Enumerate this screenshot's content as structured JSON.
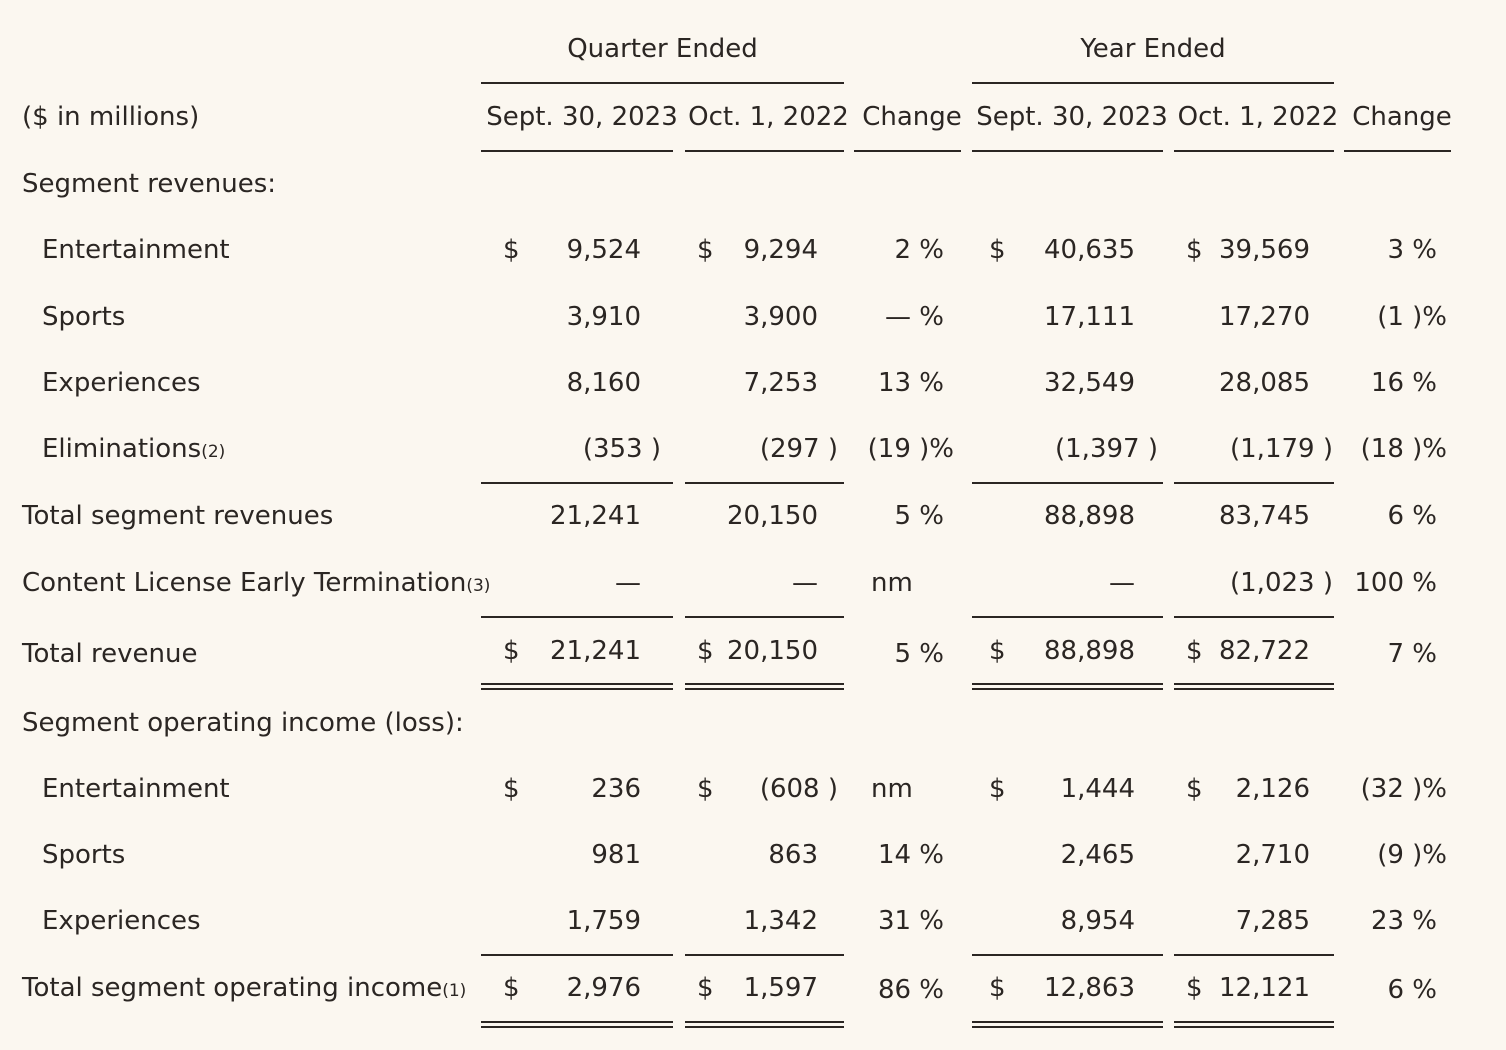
{
  "header": {
    "quarter_ended": "Quarter Ended",
    "year_ended": "Year Ended",
    "units": "($ in millions)",
    "columns": [
      "Sept. 30, 2023",
      "Oct. 1, 2022",
      "Change",
      "Sept. 30, 2023",
      "Oct. 1, 2022",
      "Change"
    ]
  },
  "sections": {
    "revenues_title": "Segment revenues:",
    "operating_title": "Segment operating income (loss):"
  },
  "rows": [
    {
      "label": "Entertainment",
      "note": "",
      "cells": [
        "9,524",
        "9,294",
        "2 %",
        "40,635",
        "39,569",
        "3 %"
      ]
    },
    {
      "label": "Sports",
      "note": "",
      "cells": [
        "3,910",
        "3,900",
        "— %",
        "17,111",
        "17,270",
        "(1 )%"
      ]
    },
    {
      "label": "Experiences",
      "note": "",
      "cells": [
        "8,160",
        "7,253",
        "13 %",
        "32,549",
        "28,085",
        "16 %"
      ]
    },
    {
      "label": "Eliminations",
      "note": "(2)",
      "cells": [
        "(353 )",
        "(297 )",
        "(19 )%",
        "(1,397 )",
        "(1,179 )",
        "(18 )%"
      ]
    },
    {
      "label": "Total segment revenues",
      "note": "",
      "cells": [
        "21,241",
        "20,150",
        "5 %",
        "88,898",
        "83,745",
        "6 %"
      ]
    },
    {
      "label": "Content License Early Termination",
      "note": "(3)",
      "cells": [
        "—",
        "—",
        "nm",
        "—",
        "(1,023 )",
        "100 %"
      ]
    },
    {
      "label": "Total revenue",
      "note": "",
      "cells": [
        "21,241",
        "20,150",
        "5 %",
        "88,898",
        "82,722",
        "7 %"
      ]
    },
    {
      "label": "Entertainment",
      "note": "",
      "cells": [
        "236",
        "(608 )",
        "nm",
        "1,444",
        "2,126",
        "(32 )%"
      ]
    },
    {
      "label": "Sports",
      "note": "",
      "cells": [
        "981",
        "863",
        "14 %",
        "2,465",
        "2,710",
        "(9 )%"
      ]
    },
    {
      "label": "Experiences",
      "note": "",
      "cells": [
        "1,759",
        "1,342",
        "31 %",
        "8,954",
        "7,285",
        "23 %"
      ]
    },
    {
      "label": "Total segment operating income",
      "note": "(1)",
      "cells": [
        "2,976",
        "1,597",
        "86 %",
        "12,863",
        "12,121",
        "6 %"
      ]
    }
  ],
  "currency_symbol": "$"
}
